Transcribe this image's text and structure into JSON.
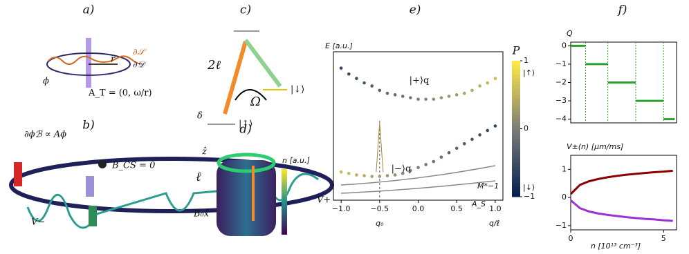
{
  "panels": {
    "a": {
      "label": "a)",
      "boundary_s": "∂𝒮",
      "boundary_d": "∂𝒟",
      "radius": "r",
      "angle": "ϕ",
      "potential": "A_T = (0, ω/r)"
    },
    "b": {
      "label": "b)",
      "relation": "∂ϕℬ ∝ Aϕ",
      "field": "B_CS = 0",
      "v_minus": "V−",
      "v_plus": "V+"
    },
    "c": {
      "label": "c)",
      "momentum": "2ℓ",
      "rabi": "Ω",
      "state_down": "|↓⟩",
      "state_up": "|↑⟩",
      "detuning": "δ"
    },
    "d": {
      "label": "d)",
      "axis_z": "ẑ",
      "orbital": "ℓ",
      "field": "B₀x̂",
      "density": "n [a.u.]"
    }
  },
  "chart_data": [
    {
      "type": "scatter",
      "panel": "e)",
      "y_label": "E [a.u.]",
      "x_label": "q/ℓ",
      "x": [
        -1,
        -0.9,
        -0.8,
        -0.7,
        -0.6,
        -0.5,
        -0.4,
        -0.3,
        -0.2,
        -0.1,
        0,
        0.1,
        0.2,
        0.3,
        0.4,
        0.5,
        0.6,
        0.7,
        0.8,
        0.9,
        1
      ],
      "series": [
        {
          "annotation": "|+⟩q",
          "values": [
            0.89,
            0.85,
            0.82,
            0.79,
            0.77,
            0.74,
            0.72,
            0.71,
            0.7,
            0.69,
            0.68,
            0.68,
            0.68,
            0.69,
            0.7,
            0.71,
            0.72,
            0.74,
            0.77,
            0.79,
            0.82
          ],
          "polarization": [
            -0.6,
            -0.54,
            -0.48,
            -0.42,
            -0.36,
            -0.3,
            -0.24,
            -0.18,
            -0.12,
            -0.06,
            0,
            0.06,
            0.12,
            0.18,
            0.24,
            0.3,
            0.36,
            0.42,
            0.48,
            0.54,
            0.6
          ]
        },
        {
          "annotation": "|−⟩q",
          "values": [
            0.19,
            0.18,
            0.17,
            0.165,
            0.16,
            0.16,
            0.165,
            0.17,
            0.18,
            0.2,
            0.22,
            0.24,
            0.26,
            0.29,
            0.32,
            0.35,
            0.38,
            0.41,
            0.44,
            0.47,
            0.5
          ],
          "polarization": [
            0.6,
            0.54,
            0.48,
            0.42,
            0.36,
            0.3,
            0.24,
            0.18,
            0.12,
            0.06,
            0,
            -0.06,
            -0.12,
            -0.18,
            -0.24,
            -0.3,
            -0.36,
            -0.42,
            -0.48,
            -0.54,
            -0.6
          ]
        }
      ],
      "peak": {
        "x": -0.5,
        "value": 0.52
      },
      "marker": {
        "value": -0.5,
        "label": "q₀"
      },
      "annotations": [
        "M*−1",
        "A_S"
      ],
      "xlim": [
        -1.1,
        1.1
      ],
      "ylim": [
        0,
        1
      ],
      "xticks": [
        {
          "value": -1,
          "label": "−1.0"
        },
        {
          "value": -0.5,
          "label": "−0.5"
        },
        {
          "value": 0,
          "label": "0.0"
        },
        {
          "value": 0.5,
          "label": "0.5"
        },
        {
          "value": 1,
          "label": "1.0"
        }
      ],
      "colorbar": {
        "label": "P",
        "lim": [
          -1,
          1
        ],
        "ticks": [
          1,
          0,
          {
            "value": -1,
            "label": "−1"
          }
        ],
        "state_top": "|↑⟩",
        "state_bottom": "|↓⟩",
        "colormap": [
          "#00204d",
          "#7c7b78",
          "#ffea46"
        ]
      }
    },
    {
      "type": "step",
      "y_label": "Q",
      "panel": "f)",
      "color": "#2ca02c",
      "edges": [
        0,
        0.8,
        2.0,
        3.5,
        5.0,
        5.6
      ],
      "values": [
        0,
        -1,
        -2,
        -3,
        -4
      ],
      "xlim": [
        0,
        5.7
      ],
      "ylim": [
        -4.2,
        0.2
      ],
      "yticks": [
        0,
        {
          "value": -1,
          "label": "−1"
        },
        {
          "value": -2,
          "label": "−2"
        },
        {
          "value": -3,
          "label": "−3"
        },
        {
          "value": -4,
          "label": "−4"
        }
      ]
    },
    {
      "type": "line",
      "y_label": "V±(n) [μm/ms]",
      "x_label": "n [10¹³ cm⁻³]",
      "x": [
        0,
        0.5,
        1,
        1.5,
        2,
        2.5,
        3,
        3.5,
        4,
        4.5,
        5,
        5.5
      ],
      "series": [
        {
          "color": "#8b0000",
          "values": [
            0.12,
            0.45,
            0.58,
            0.66,
            0.72,
            0.77,
            0.81,
            0.84,
            0.87,
            0.9,
            0.92,
            0.95
          ]
        },
        {
          "color": "#9b30d9",
          "values": [
            -0.1,
            -0.38,
            -0.5,
            -0.57,
            -0.62,
            -0.66,
            -0.7,
            -0.73,
            -0.76,
            -0.78,
            -0.81,
            -0.83
          ]
        }
      ],
      "xlim": [
        0,
        5.7
      ],
      "ylim": [
        -1.15,
        1.5
      ],
      "xticks": [
        0,
        5
      ],
      "yticks": [
        1,
        0,
        {
          "value": -1,
          "label": "−1"
        }
      ]
    }
  ]
}
